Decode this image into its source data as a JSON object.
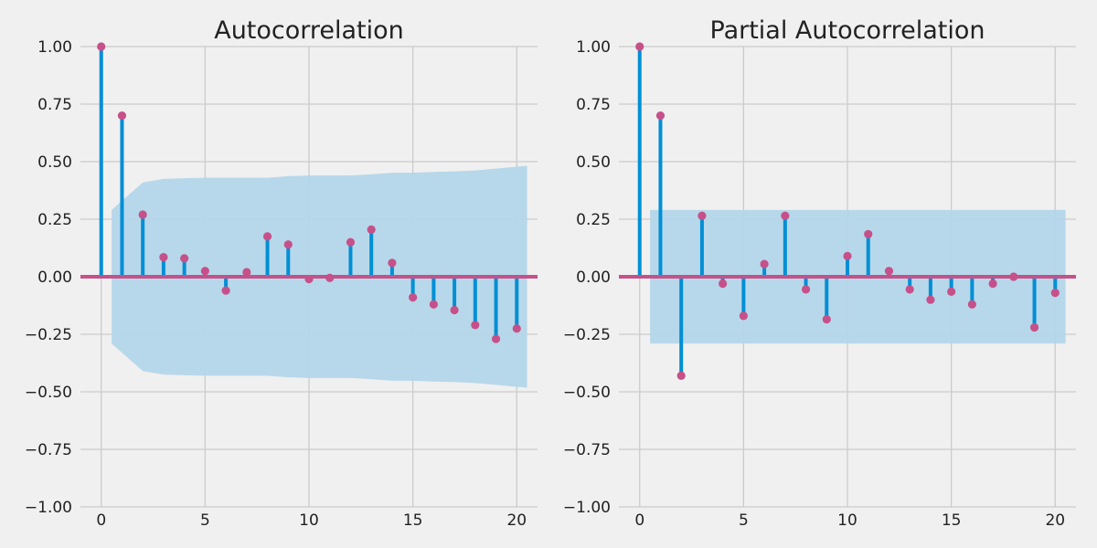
{
  "colors": {
    "background": "#f0f0f0",
    "grid": "#cbcbcb",
    "stem": "#008fd5",
    "marker": "#c6518a",
    "zero_line": "#c6518a",
    "confidence_band": "#b3d6e9",
    "text": "#222222"
  },
  "chart_data": [
    {
      "type": "stem",
      "title": "Autocorrelation",
      "xlabel": "",
      "ylabel": "",
      "xlim": [
        -1,
        21
      ],
      "ylim": [
        -1.0,
        1.0
      ],
      "grid": true,
      "x_ticks": [
        "0",
        "5",
        "10",
        "15",
        "20"
      ],
      "x_tick_values": [
        0,
        5,
        10,
        15,
        20
      ],
      "y_ticks": [
        "1.00",
        "0.75",
        "0.50",
        "0.25",
        "0.00",
        "−0.25",
        "−0.50",
        "−0.75",
        "−1.00"
      ],
      "y_tick_values": [
        1.0,
        0.75,
        0.5,
        0.25,
        0.0,
        -0.25,
        -0.5,
        -0.75,
        -1.0
      ],
      "lags": [
        0,
        1,
        2,
        3,
        4,
        5,
        6,
        7,
        8,
        9,
        10,
        11,
        12,
        13,
        14,
        15,
        16,
        17,
        18,
        19,
        20
      ],
      "values": [
        1.0,
        0.7,
        0.27,
        0.085,
        0.08,
        0.025,
        -0.06,
        0.02,
        0.175,
        0.14,
        -0.01,
        -0.005,
        0.15,
        0.205,
        0.06,
        -0.09,
        -0.12,
        -0.145,
        -0.21,
        -0.27,
        -0.225
      ],
      "confidence_band": {
        "lags": [
          0.5,
          1,
          2,
          3,
          4,
          5,
          6,
          7,
          8,
          9,
          10,
          11,
          12,
          13,
          14,
          15,
          16,
          17,
          18,
          19,
          20,
          20.5
        ],
        "upper": [
          0.29,
          0.33,
          0.41,
          0.425,
          0.428,
          0.43,
          0.43,
          0.43,
          0.43,
          0.437,
          0.44,
          0.44,
          0.44,
          0.445,
          0.452,
          0.452,
          0.455,
          0.458,
          0.462,
          0.47,
          0.478,
          0.482
        ]
      }
    },
    {
      "type": "stem",
      "title": "Partial Autocorrelation",
      "xlabel": "",
      "ylabel": "",
      "xlim": [
        -1,
        21
      ],
      "ylim": [
        -1.0,
        1.0
      ],
      "grid": true,
      "x_ticks": [
        "0",
        "5",
        "10",
        "15",
        "20"
      ],
      "x_tick_values": [
        0,
        5,
        10,
        15,
        20
      ],
      "y_ticks": [
        "1.00",
        "0.75",
        "0.50",
        "0.25",
        "0.00",
        "−0.25",
        "−0.50",
        "−0.75",
        "−1.00"
      ],
      "y_tick_values": [
        1.0,
        0.75,
        0.5,
        0.25,
        0.0,
        -0.25,
        -0.5,
        -0.75,
        -1.0
      ],
      "lags": [
        0,
        1,
        2,
        3,
        4,
        5,
        6,
        7,
        8,
        9,
        10,
        11,
        12,
        13,
        14,
        15,
        16,
        17,
        18,
        19,
        20
      ],
      "values": [
        1.0,
        0.7,
        -0.43,
        0.265,
        -0.03,
        -0.17,
        0.055,
        0.265,
        -0.055,
        -0.185,
        0.09,
        0.185,
        0.025,
        -0.055,
        -0.1,
        -0.065,
        -0.12,
        -0.03,
        0.0,
        -0.22,
        -0.07
      ],
      "confidence_band": {
        "lags": [
          0.5,
          20.5
        ],
        "upper": [
          0.29,
          0.29
        ]
      }
    }
  ]
}
